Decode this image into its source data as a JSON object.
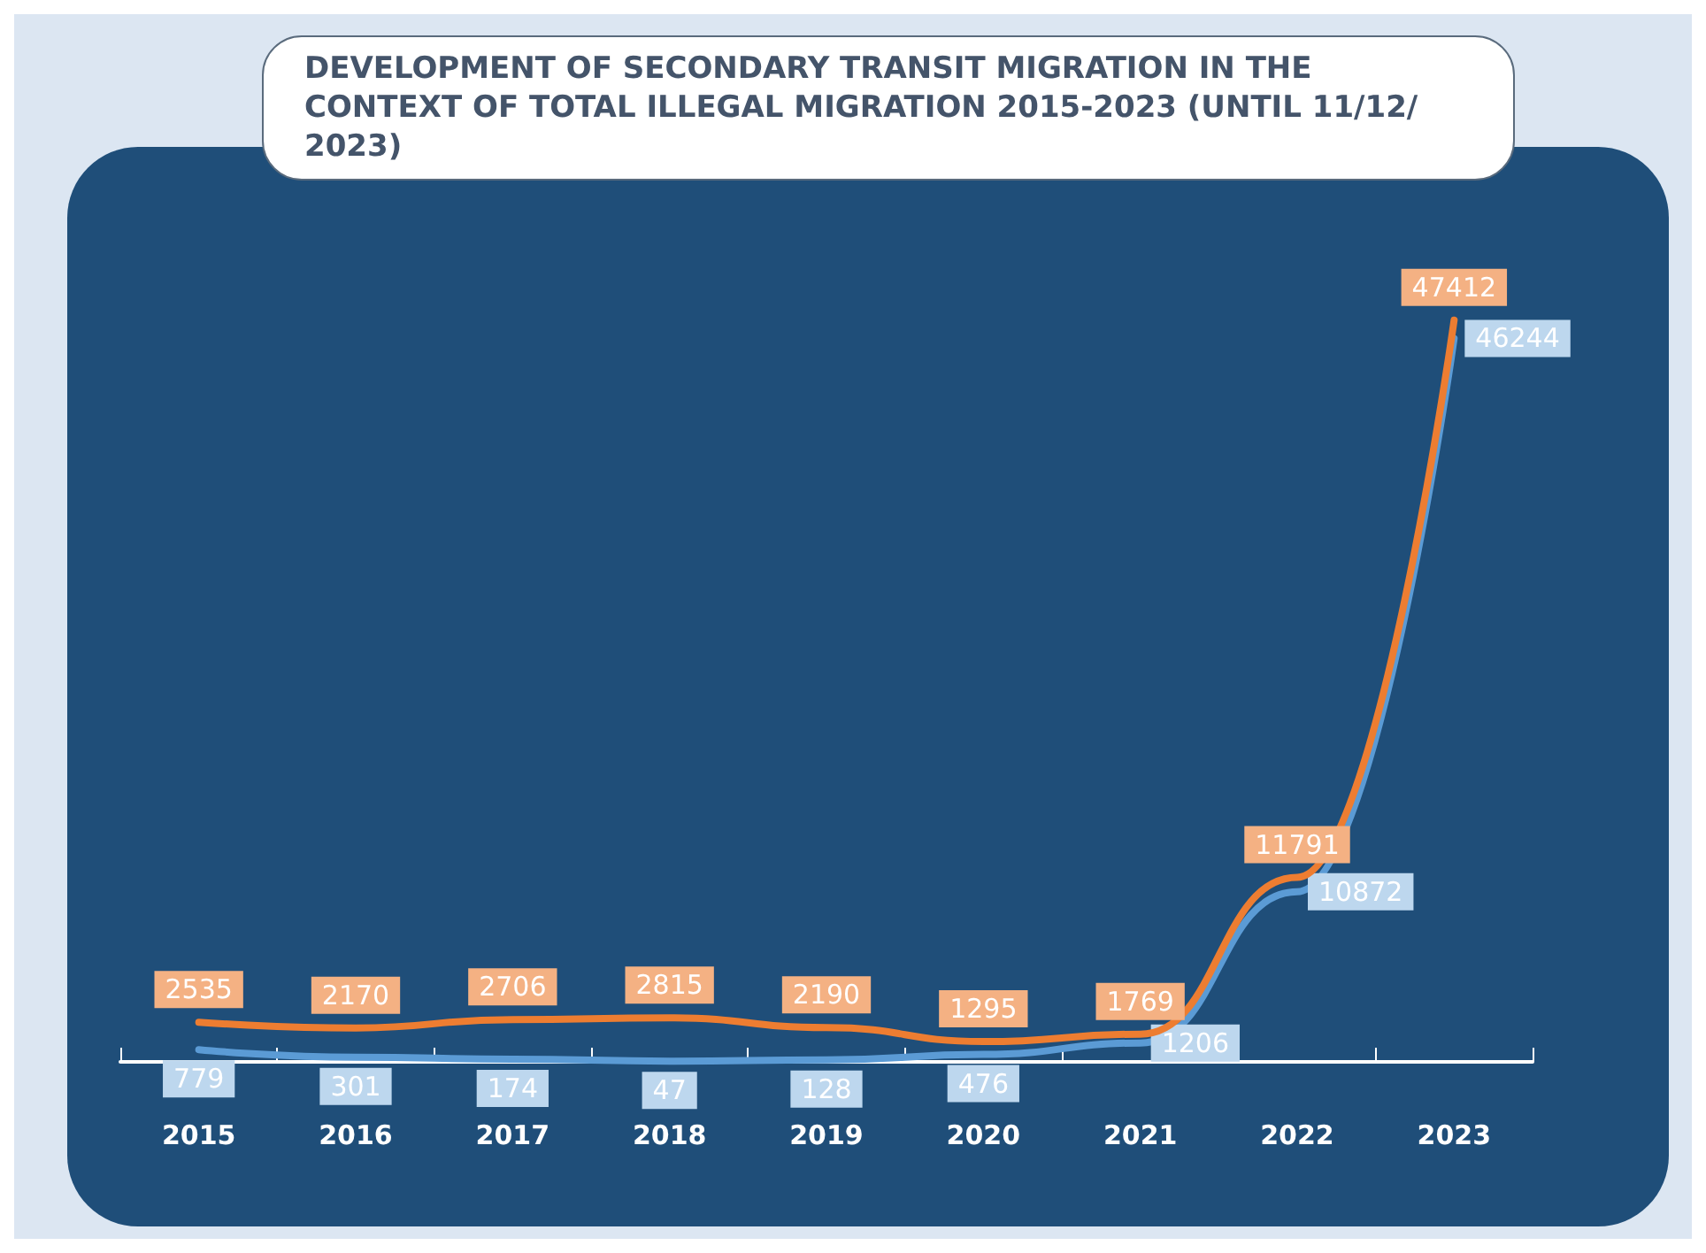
{
  "chart_data": {
    "type": "line",
    "title": "DEVELOPMENT OF SECONDARY TRANSIT MIGRATION IN THE CONTEXT OF TOTAL ILLEGAL MIGRATION 2015-2023 (UNTIL 11/12/2023)",
    "categories": [
      "2015",
      "2016",
      "2017",
      "2018",
      "2019",
      "2020",
      "2021",
      "2022",
      "2023"
    ],
    "series": [
      {
        "color": "#ed7d31",
        "values": [
          2535,
          2170,
          2706,
          2815,
          2190,
          1295,
          1769,
          11791,
          47412
        ]
      },
      {
        "color": "#5b9bd5",
        "values": [
          779,
          301,
          174,
          47,
          128,
          476,
          1206,
          10872,
          46244
        ]
      }
    ],
    "data_labels": true,
    "grid": false,
    "marker": "none",
    "line_style": "solid"
  }
}
